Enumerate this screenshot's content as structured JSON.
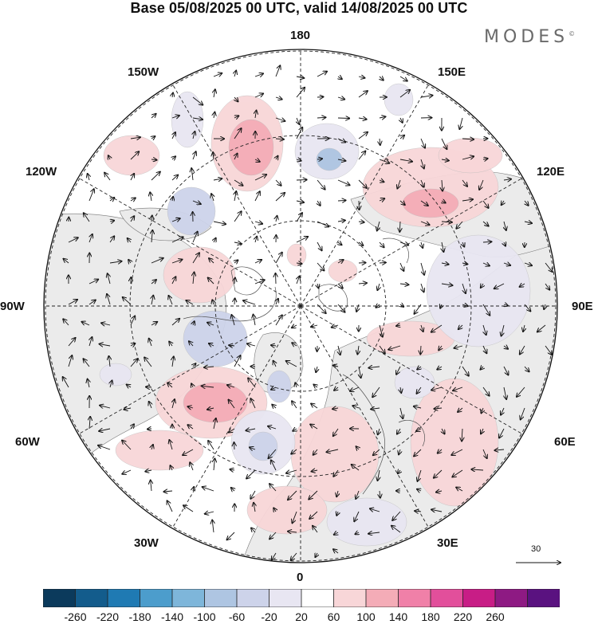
{
  "title": "Base 05/08/2025 00 UTC, valid 14/08/2025 00 UTC",
  "brand": {
    "name": "MODES",
    "mark": "©"
  },
  "meridian_labels": {
    "lon_180": "180",
    "lon_150W": "150W",
    "lon_150E": "150E",
    "lon_120W": "120W",
    "lon_120E": "120E",
    "lon_90W": "90W",
    "lon_90E": "90E",
    "lon_60W": "60W",
    "lon_60E": "60E",
    "lon_30W": "30W",
    "lon_30E": "30E",
    "lon_0": "0"
  },
  "vector_scale": {
    "value": "30"
  },
  "colorbar": {
    "colors": [
      "#0b3a5c",
      "#135c8c",
      "#1f7ab3",
      "#4c9dcc",
      "#7eb6da",
      "#aec5e2",
      "#cdd3ea",
      "#e8e6f2",
      "#ffffff",
      "#f8d6d8",
      "#f4acb7",
      "#f080a8",
      "#e24f9b",
      "#c81d86",
      "#8e1a83",
      "#5a1280"
    ],
    "tick_labels": [
      "-260",
      "-220",
      "-180",
      "-140",
      "-100",
      "-60",
      "-20",
      "20",
      "60",
      "100",
      "140",
      "180",
      "220",
      "260"
    ]
  },
  "anomaly_colors": {
    "neg_weak": "#e8e6f2",
    "neg_mod": "#cdd3ea",
    "neg_strong": "#aec5e2",
    "neg_vstrong": "#7eb6da",
    "pos_weak": "#f8d6d8",
    "pos_mod": "#f4acb7",
    "land": "#ebebeb"
  }
}
